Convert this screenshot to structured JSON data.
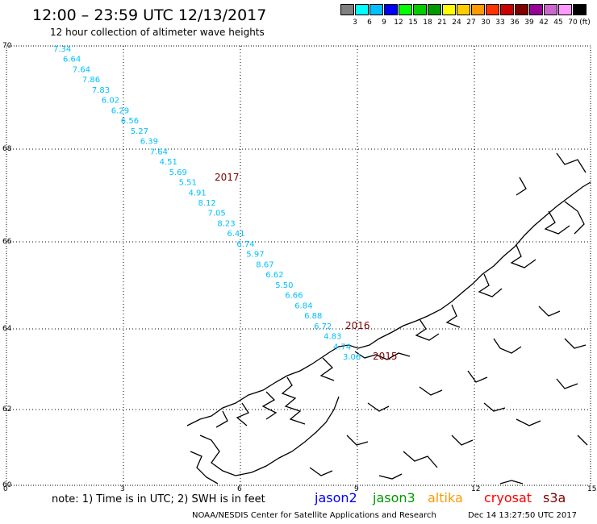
{
  "header": {
    "title": "12:00 – 23:59 UTC 12/13/2017",
    "subtitle": "12 hour collection of altimeter wave heights"
  },
  "colorbar": {
    "unit": "(ft)",
    "colors": [
      "#808080",
      "#00ffff",
      "#00bfff",
      "#0000ff",
      "#00ff00",
      "#00cc00",
      "#009900",
      "#ffff00",
      "#ffcc00",
      "#ff9900",
      "#ff3300",
      "#cc0000",
      "#800000",
      "#990099",
      "#cc66cc",
      "#ff99ff",
      "#000000"
    ],
    "labels": [
      "3",
      "6",
      "9",
      "12",
      "15",
      "18",
      "21",
      "24",
      "27",
      "30",
      "33",
      "36",
      "39",
      "42",
      "45",
      "70"
    ]
  },
  "axes": {
    "lat_labels": [
      "70",
      "68",
      "66",
      "64",
      "62",
      "60"
    ],
    "lon_labels": [
      "0",
      "3",
      "6",
      "9",
      "12",
      "15"
    ]
  },
  "track_values": [
    "7.34",
    "6.64",
    "7.64",
    "7.86",
    "7.83",
    "6.02",
    "6.29",
    "6.56",
    "5.27",
    "6.39",
    "7.64",
    "4.51",
    "5.69",
    "5.51",
    "4.91",
    "8.12",
    "7.05",
    "8.23",
    "6.41",
    "6.74",
    "5.97",
    "8.67",
    "6.62",
    "5.50",
    "6.66",
    "6.84",
    "6.88",
    "6.72",
    "4.83",
    "4.74",
    "3.06"
  ],
  "track_color": "#00bfff",
  "year_labels": [
    {
      "text": "2017"
    },
    {
      "text": "2016"
    },
    {
      "text": "2015"
    }
  ],
  "year_color": "#800000",
  "footer": {
    "note": "note: 1) Time is in UTC; 2) SWH is in feet",
    "satellites": [
      {
        "name": "jason2",
        "color": "#0000ff"
      },
      {
        "name": "jason3",
        "color": "#009900"
      },
      {
        "name": "altika",
        "color": "#ff9900"
      },
      {
        "name": "cryosat",
        "color": "#ff0000"
      },
      {
        "name": "s3a",
        "color": "#800000"
      }
    ],
    "credit": "NOAA/NESDIS Center for Satellite Applications and Research",
    "timestamp": "Dec 14 13:27:50 UTC 2017"
  }
}
